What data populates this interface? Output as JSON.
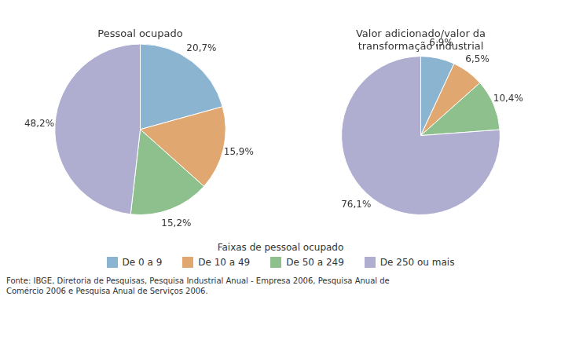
{
  "chart_data": [
    {
      "type": "pie",
      "title": "Pessoal ocupado",
      "categories": [
        "De 0 a 9",
        "De 10 a 49",
        "De 50 a 249",
        "De 250 ou mais"
      ],
      "values": [
        20.7,
        15.9,
        15.2,
        48.2
      ],
      "value_labels": [
        "20,7%",
        "15,9%",
        "15,2%",
        "48,2%"
      ],
      "colors": [
        "#8ab4d0",
        "#e0a870",
        "#8dc08d",
        "#b0aed0"
      ],
      "data_labels": true
    },
    {
      "type": "pie",
      "title": "Valor adicionado/valor da\ntransformação industrial",
      "categories": [
        "De 0 a 9",
        "De 10 a 49",
        "De 50 a 249",
        "De 250 ou mais"
      ],
      "values": [
        6.9,
        6.5,
        10.4,
        76.1
      ],
      "value_labels": [
        "6,9%",
        "6,5%",
        "10,4%",
        "76,1%"
      ],
      "colors": [
        "#8ab4d0",
        "#e0a870",
        "#8dc08d",
        "#b0aed0"
      ],
      "data_labels": true
    }
  ],
  "legend_title": "Faixas de pessoal ocupado",
  "source": "Fonte: IBGE, Diretoria de Pesquisas, Pesquisa Industrial Anual - Empresa 2006, Pesquisa Anual de\nComércio 2006 e Pesquisa Anual de Serviços 2006."
}
